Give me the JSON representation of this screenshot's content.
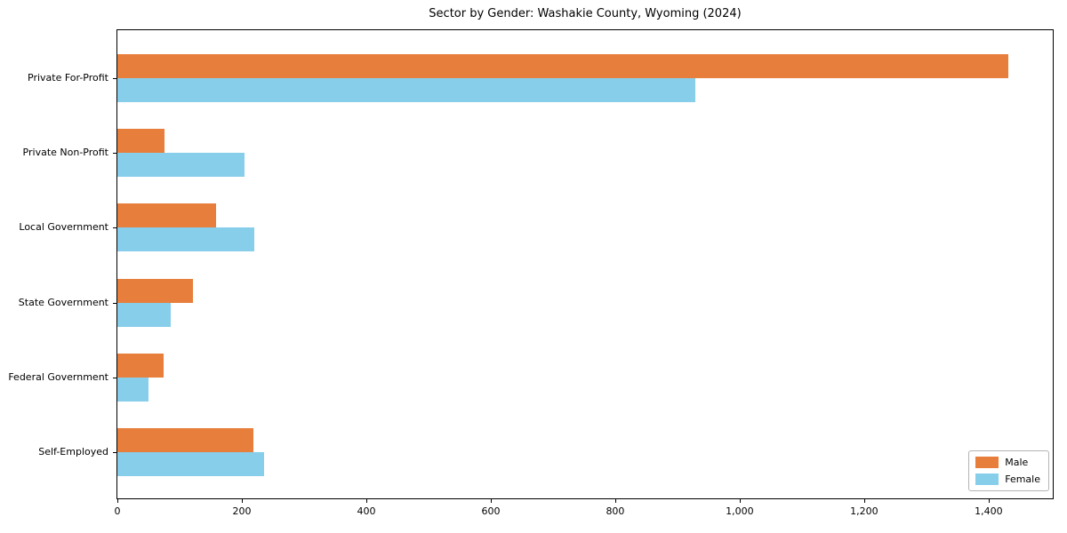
{
  "chart_data": {
    "type": "bar",
    "orientation": "horizontal",
    "title": "Sector by Gender: Washakie County, Wyoming (2024)",
    "categories": [
      "Private For-Profit",
      "Private Non-Profit",
      "Local Government",
      "State Government",
      "Federal Government",
      "Self-Employed"
    ],
    "series": [
      {
        "name": "Male",
        "color": "#e87e3b",
        "values": [
          1431,
          76,
          159,
          122,
          75,
          218
        ]
      },
      {
        "name": "Female",
        "color": "#87ceeb",
        "values": [
          929,
          204,
          220,
          86,
          50,
          236
        ]
      }
    ],
    "xlabel": "",
    "ylabel": "",
    "xlim": [
      0,
      1503
    ],
    "x_ticks": [
      {
        "value": 0,
        "label": "0"
      },
      {
        "value": 200,
        "label": "200"
      },
      {
        "value": 400,
        "label": "400"
      },
      {
        "value": 600,
        "label": "600"
      },
      {
        "value": 800,
        "label": "800"
      },
      {
        "value": 1000,
        "label": "1,000"
      },
      {
        "value": 1200,
        "label": "1,200"
      },
      {
        "value": 1400,
        "label": "1,400"
      }
    ],
    "grid": false,
    "legend_position": "lower right"
  }
}
